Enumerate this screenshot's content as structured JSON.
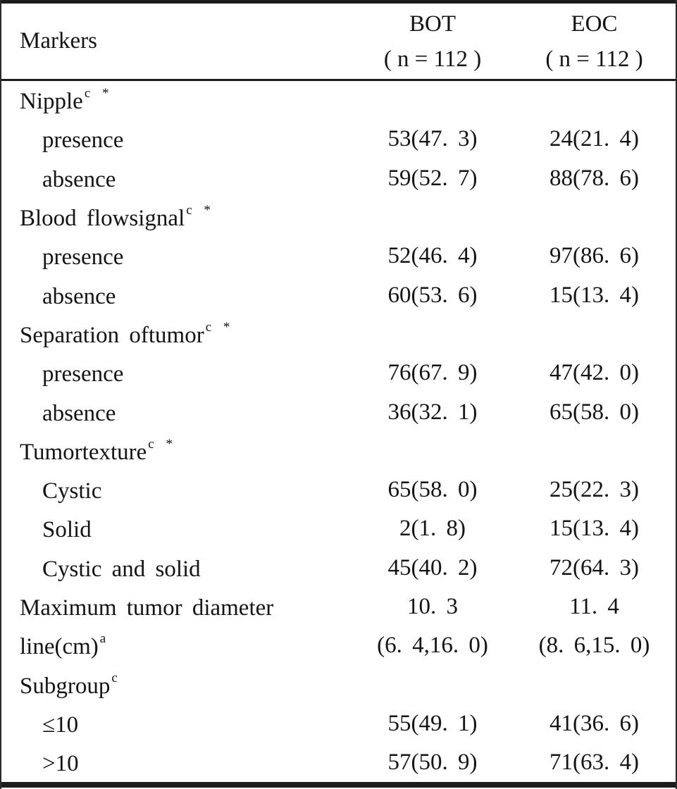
{
  "table": {
    "header": {
      "markers": "Markers",
      "bot_line1": "BOT",
      "bot_line2": "( n = 112 )",
      "eoc_line1": "EOC",
      "eoc_line2": "( n = 112 )"
    },
    "rows": [
      {
        "label": "Nipple",
        "sup": "c *",
        "bot": "",
        "eoc": ""
      },
      {
        "label": "presence",
        "sup": "",
        "bot": "53(47. 3)",
        "eoc": "24(21. 4)"
      },
      {
        "label": "absence",
        "sup": "",
        "bot": "59(52. 7)",
        "eoc": "88(78. 6)"
      },
      {
        "label": "Blood flowsignal",
        "sup": "c *",
        "bot": "",
        "eoc": ""
      },
      {
        "label": "presence",
        "sup": "",
        "bot": "52(46. 4)",
        "eoc": "97(86. 6)"
      },
      {
        "label": "absence",
        "sup": "",
        "bot": "60(53. 6)",
        "eoc": "15(13. 4)"
      },
      {
        "label": "Separation oftumor",
        "sup": "c *",
        "bot": "",
        "eoc": ""
      },
      {
        "label": "presence",
        "sup": "",
        "bot": "76(67. 9)",
        "eoc": "47(42. 0)"
      },
      {
        "label": "absence",
        "sup": "",
        "bot": "36(32. 1)",
        "eoc": "65(58. 0)"
      },
      {
        "label": "Tumortexture",
        "sup": "c *",
        "bot": "",
        "eoc": ""
      },
      {
        "label": "Cystic",
        "sup": "",
        "bot": "65(58. 0)",
        "eoc": "25(22. 3)"
      },
      {
        "label": "Solid",
        "sup": "",
        "bot": "2(1. 8)",
        "eoc": "15(13. 4)"
      },
      {
        "label": "Cystic and solid",
        "sup": "",
        "bot": "45(40. 2)",
        "eoc": "72(64. 3)"
      },
      {
        "label": "Maximum tumor diameter",
        "sup": "",
        "bot": "10. 3",
        "eoc": "11. 4"
      },
      {
        "label": "line(cm)",
        "sup": "a",
        "bot": "(6. 4,16. 0)",
        "eoc": "(8. 6,15. 0)"
      },
      {
        "label": "Subgroup",
        "sup": "c",
        "bot": "",
        "eoc": ""
      },
      {
        "label": "≤10",
        "sup": "",
        "bot": "55(49. 1)",
        "eoc": "41(36. 6)"
      },
      {
        "label": ">10",
        "sup": "",
        "bot": "57(50. 9)",
        "eoc": "71(63. 4)"
      }
    ]
  }
}
